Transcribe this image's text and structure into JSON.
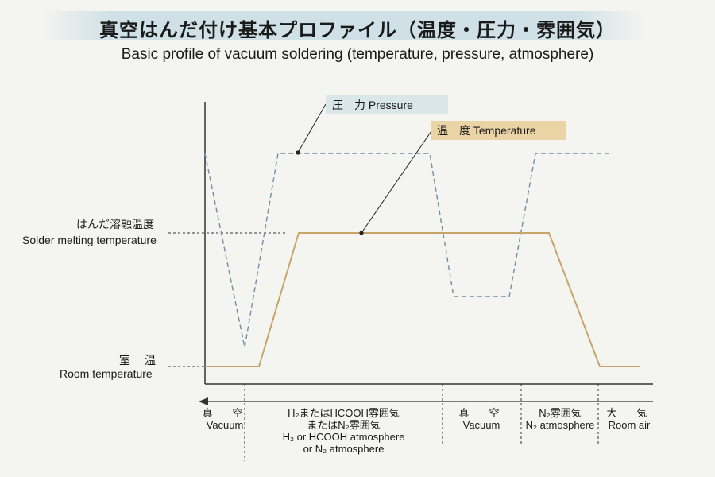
{
  "title": {
    "jp": "真空はんだ付け基本プロファイル（温度・圧力・雰囲気）",
    "en": "Basic profile of vacuum soldering (temperature, pressure, atmosphere)"
  },
  "legend": {
    "pressure": "圧　力 Pressure",
    "temperature": "温　度 Temperature"
  },
  "y_labels": {
    "melting_jp": "はんだ溶融温度",
    "melting_en": "Solder melting temperature",
    "room_jp": "室　温",
    "room_en": "Room temperature"
  },
  "phases": [
    {
      "jp": "真　空",
      "en": "Vacuum",
      "extra_jp": "",
      "extra_en1": "",
      "extra_en2": ""
    },
    {
      "jp": "H₂またはHCOOH雰囲気",
      "en": "",
      "extra_jp": "またはN₂雰囲気",
      "extra_en1": "H₂ or HCOOH atmosphere",
      "extra_en2": "or N₂ atmosphere"
    },
    {
      "jp": "真　空",
      "en": "Vacuum",
      "extra_jp": "",
      "extra_en1": "",
      "extra_en2": ""
    },
    {
      "jp": "N₂雰囲気",
      "en": "N₂ atmosphere",
      "extra_jp": "",
      "extra_en1": "",
      "extra_en2": ""
    },
    {
      "jp": "大　気",
      "en": "Room air",
      "extra_jp": "",
      "extra_en1": "",
      "extra_en2": ""
    }
  ],
  "colors": {
    "pressure_line": "#6e8fa6",
    "temperature_line": "#c9a46a",
    "axis": "#333333"
  }
}
